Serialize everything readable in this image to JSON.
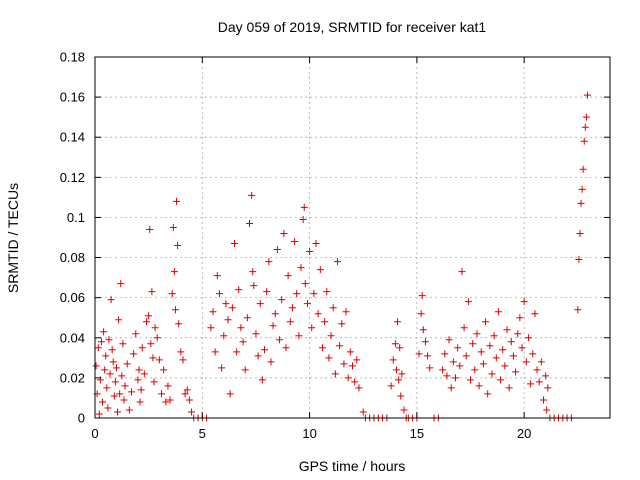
{
  "chart_data": {
    "type": "scatter",
    "title": "Day 059 of 2019, SRMTID for receiver kat1",
    "xlabel": "GPS time / hours",
    "ylabel": "SRMTID / TECUs",
    "xlim": [
      0,
      24
    ],
    "ylim": [
      0,
      0.18
    ],
    "x_ticks": [
      0,
      5,
      10,
      15,
      20
    ],
    "x_tick_labels": [
      "0",
      "5",
      "10",
      "15",
      "20"
    ],
    "y_ticks": [
      0,
      0.02,
      0.04,
      0.06,
      0.08,
      0.1,
      0.12,
      0.14,
      0.16,
      0.18
    ],
    "y_tick_labels": [
      "0",
      "0.02",
      "0.04",
      "0.06",
      "0.08",
      "0.1",
      "0.12",
      "0.14",
      "0.16",
      "0.18"
    ],
    "grid": true,
    "marker": "plus",
    "color": "#dd0000",
    "series": [
      {
        "points": [
          [
            0.05,
            0.026
          ],
          [
            0.1,
            0.012
          ],
          [
            0.15,
            0.035
          ],
          [
            0.2,
            0.002
          ],
          [
            0.25,
            0.019
          ],
          [
            0.3,
            0.038
          ],
          [
            0.35,
            0.008
          ],
          [
            0.4,
            0.043
          ],
          [
            0.45,
            0.024
          ],
          [
            0.5,
            0.031
          ],
          [
            0.55,
            0.015
          ],
          [
            0.6,
            0.005
          ],
          [
            0.65,
            0.039
          ],
          [
            0.7,
            0.022
          ],
          [
            0.75,
            0.059
          ],
          [
            0.8,
            0.034
          ],
          [
            0.85,
            0.028
          ],
          [
            0.9,
            0.011
          ],
          [
            0.95,
            0.018
          ],
          [
            1.0,
            0.025
          ],
          [
            1.05,
            0.003
          ],
          [
            1.1,
            0.049
          ],
          [
            1.15,
            0.012
          ],
          [
            1.2,
            0.067
          ],
          [
            1.25,
            0.021
          ],
          [
            1.3,
            0.037
          ],
          [
            1.35,
            0.009
          ],
          [
            1.4,
            0.016
          ],
          [
            1.5,
            0.027
          ],
          [
            1.6,
            0.004
          ],
          [
            1.7,
            0.013
          ],
          [
            1.8,
            0.032
          ],
          [
            1.9,
            0.042
          ],
          [
            2.0,
            0.019
          ],
          [
            2.05,
            0.024
          ],
          [
            2.1,
            0.008
          ],
          [
            2.15,
            0.014
          ],
          [
            2.2,
            0.035
          ],
          [
            2.3,
            0.022
          ],
          [
            2.4,
            0.048
          ],
          [
            2.5,
            0.051
          ],
          [
            2.55,
            0.094
          ],
          [
            2.6,
            0.037
          ],
          [
            2.65,
            0.063
          ],
          [
            2.7,
            0.03
          ],
          [
            2.75,
            0.018
          ],
          [
            2.8,
            0.045
          ],
          [
            2.9,
            0.04
          ],
          [
            3.0,
            0.029
          ],
          [
            3.1,
            0.012
          ],
          [
            3.2,
            0.024
          ],
          [
            3.3,
            0.008
          ],
          [
            3.4,
            0.016
          ],
          [
            3.5,
            0.009
          ],
          [
            3.6,
            0.062
          ],
          [
            3.65,
            0.095
          ],
          [
            3.7,
            0.073
          ],
          [
            3.75,
            0.054
          ],
          [
            3.8,
            0.108
          ],
          [
            3.85,
            0.086
          ],
          [
            3.9,
            0.047
          ],
          [
            4.0,
            0.033
          ],
          [
            4.1,
            0.029
          ],
          [
            4.2,
            0.012
          ],
          [
            4.3,
            0.014
          ],
          [
            4.4,
            0.009
          ],
          [
            4.5,
            0.003
          ],
          [
            4.6,
            0.0
          ],
          [
            4.8,
            0.0
          ],
          [
            5.0,
            0.0
          ],
          [
            5.2,
            0.0
          ],
          [
            5.4,
            0.045
          ],
          [
            5.5,
            0.053
          ],
          [
            5.6,
            0.033
          ],
          [
            5.7,
            0.071
          ],
          [
            5.8,
            0.062
          ],
          [
            5.9,
            0.025
          ],
          [
            6.0,
            0.041
          ],
          [
            6.1,
            0.057
          ],
          [
            6.2,
            0.049
          ],
          [
            6.3,
            0.012
          ],
          [
            6.4,
            0.055
          ],
          [
            6.5,
            0.087
          ],
          [
            6.6,
            0.033
          ],
          [
            6.7,
            0.064
          ],
          [
            6.8,
            0.045
          ],
          [
            6.9,
            0.038
          ],
          [
            7.0,
            0.024
          ],
          [
            7.1,
            0.05
          ],
          [
            7.2,
            0.097
          ],
          [
            7.3,
            0.111
          ],
          [
            7.35,
            0.073
          ],
          [
            7.4,
            0.066
          ],
          [
            7.5,
            0.042
          ],
          [
            7.6,
            0.031
          ],
          [
            7.7,
            0.057
          ],
          [
            7.8,
            0.019
          ],
          [
            7.9,
            0.034
          ],
          [
            8.0,
            0.063
          ],
          [
            8.1,
            0.078
          ],
          [
            8.2,
            0.028
          ],
          [
            8.3,
            0.046
          ],
          [
            8.4,
            0.052
          ],
          [
            8.5,
            0.084
          ],
          [
            8.6,
            0.039
          ],
          [
            8.7,
            0.059
          ],
          [
            8.8,
            0.092
          ],
          [
            8.9,
            0.035
          ],
          [
            9.0,
            0.071
          ],
          [
            9.1,
            0.048
          ],
          [
            9.2,
            0.055
          ],
          [
            9.3,
            0.088
          ],
          [
            9.4,
            0.062
          ],
          [
            9.5,
            0.041
          ],
          [
            9.6,
            0.075
          ],
          [
            9.7,
            0.099
          ],
          [
            9.75,
            0.105
          ],
          [
            9.8,
            0.067
          ],
          [
            9.9,
            0.057
          ],
          [
            10.0,
            0.083
          ],
          [
            10.1,
            0.045
          ],
          [
            10.2,
            0.062
          ],
          [
            10.3,
            0.087
          ],
          [
            10.4,
            0.052
          ],
          [
            10.5,
            0.074
          ],
          [
            10.6,
            0.035
          ],
          [
            10.7,
            0.048
          ],
          [
            10.8,
            0.063
          ],
          [
            10.9,
            0.03
          ],
          [
            11.0,
            0.041
          ],
          [
            11.1,
            0.055
          ],
          [
            11.2,
            0.022
          ],
          [
            11.3,
            0.078
          ],
          [
            11.4,
            0.036
          ],
          [
            11.5,
            0.047
          ],
          [
            11.6,
            0.027
          ],
          [
            11.7,
            0.053
          ],
          [
            11.8,
            0.02
          ],
          [
            11.9,
            0.033
          ],
          [
            12.0,
            0.026
          ],
          [
            12.1,
            0.018
          ],
          [
            12.2,
            0.029
          ],
          [
            12.3,
            0.015
          ],
          [
            12.5,
            0.003
          ],
          [
            12.6,
            0.0
          ],
          [
            12.8,
            0.0
          ],
          [
            13.0,
            0.0
          ],
          [
            13.2,
            0.0
          ],
          [
            13.4,
            0.0
          ],
          [
            13.6,
            0.0
          ],
          [
            13.8,
            0.016
          ],
          [
            13.9,
            0.029
          ],
          [
            14.0,
            0.037
          ],
          [
            14.05,
            0.024
          ],
          [
            14.1,
            0.048
          ],
          [
            14.15,
            0.019
          ],
          [
            14.2,
            0.035
          ],
          [
            14.25,
            0.011
          ],
          [
            14.3,
            0.022
          ],
          [
            14.4,
            0.004
          ],
          [
            14.5,
            0.0
          ],
          [
            14.6,
            0.0
          ],
          [
            14.8,
            0.0
          ],
          [
            15.0,
            0.0
          ],
          [
            15.1,
            0.032
          ],
          [
            15.2,
            0.052
          ],
          [
            15.25,
            0.061
          ],
          [
            15.3,
            0.044
          ],
          [
            15.4,
            0.038
          ],
          [
            15.5,
            0.031
          ],
          [
            15.6,
            0.025
          ],
          [
            15.8,
            0.0
          ],
          [
            16.0,
            0.0
          ],
          [
            16.2,
            0.024
          ],
          [
            16.3,
            0.032
          ],
          [
            16.4,
            0.021
          ],
          [
            16.5,
            0.039
          ],
          [
            16.6,
            0.015
          ],
          [
            16.7,
            0.028
          ],
          [
            16.8,
            0.02
          ],
          [
            16.9,
            0.035
          ],
          [
            17.0,
            0.026
          ],
          [
            17.1,
            0.073
          ],
          [
            17.2,
            0.045
          ],
          [
            17.3,
            0.031
          ],
          [
            17.4,
            0.058
          ],
          [
            17.5,
            0.019
          ],
          [
            17.6,
            0.037
          ],
          [
            17.7,
            0.024
          ],
          [
            17.8,
            0.042
          ],
          [
            17.9,
            0.016
          ],
          [
            18.0,
            0.033
          ],
          [
            18.1,
            0.027
          ],
          [
            18.2,
            0.048
          ],
          [
            18.3,
            0.012
          ],
          [
            18.4,
            0.036
          ],
          [
            18.5,
            0.022
          ],
          [
            18.6,
            0.041
          ],
          [
            18.7,
            0.03
          ],
          [
            18.8,
            0.053
          ],
          [
            18.9,
            0.019
          ],
          [
            19.0,
            0.034
          ],
          [
            19.1,
            0.026
          ],
          [
            19.2,
            0.044
          ],
          [
            19.3,
            0.015
          ],
          [
            19.4,
            0.038
          ],
          [
            19.5,
            0.031
          ],
          [
            19.6,
            0.023
          ],
          [
            19.7,
            0.042
          ],
          [
            19.8,
            0.05
          ],
          [
            19.9,
            0.035
          ],
          [
            20.0,
            0.058
          ],
          [
            20.1,
            0.028
          ],
          [
            20.2,
            0.04
          ],
          [
            20.3,
            0.017
          ],
          [
            20.4,
            0.032
          ],
          [
            20.5,
            0.052
          ],
          [
            20.6,
            0.024
          ],
          [
            20.7,
            0.018
          ],
          [
            20.8,
            0.028
          ],
          [
            20.9,
            0.009
          ],
          [
            21.0,
            0.021
          ],
          [
            21.05,
            0.004
          ],
          [
            21.1,
            0.015
          ],
          [
            21.2,
            0.0
          ],
          [
            21.4,
            0.0
          ],
          [
            21.6,
            0.0
          ],
          [
            21.8,
            0.0
          ],
          [
            22.0,
            0.0
          ],
          [
            22.2,
            0.0
          ],
          [
            22.5,
            0.054
          ],
          [
            22.55,
            0.079
          ],
          [
            22.6,
            0.092
          ],
          [
            22.65,
            0.107
          ],
          [
            22.7,
            0.114
          ],
          [
            22.75,
            0.124
          ],
          [
            22.8,
            0.138
          ],
          [
            22.85,
            0.145
          ],
          [
            22.9,
            0.15
          ],
          [
            22.95,
            0.161
          ]
        ]
      }
    ]
  }
}
